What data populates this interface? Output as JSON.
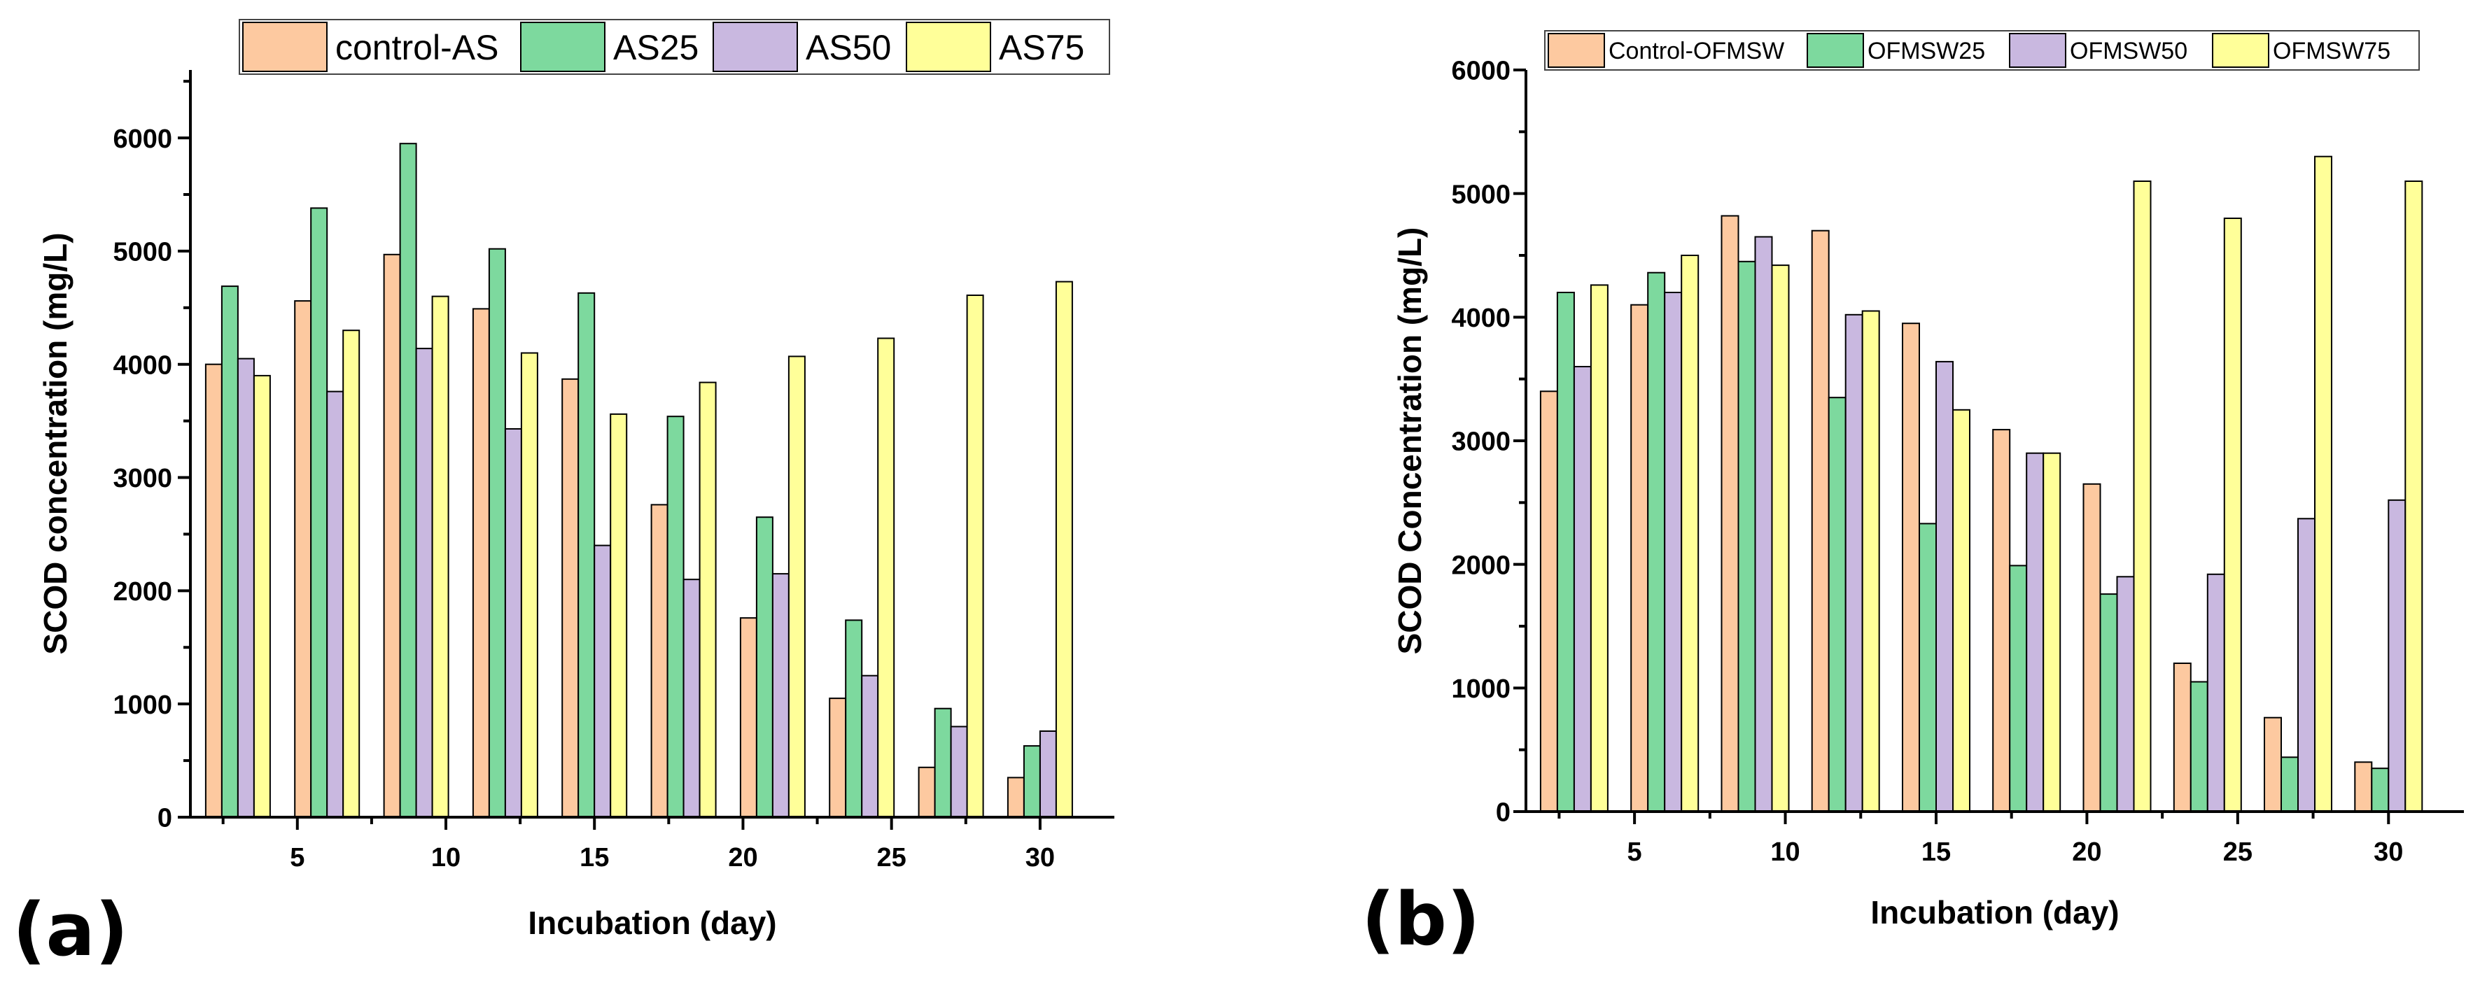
{
  "chart_data": [
    {
      "type": "bar",
      "panel_label": "(a)",
      "xlabel": "Incubation (day)",
      "ylabel": "SCOD concentration (mg/L)",
      "ylim": [
        0,
        6600
      ],
      "yticks": [
        0,
        1000,
        2000,
        3000,
        4000,
        5000,
        6000
      ],
      "xlim": [
        1.4,
        32.5
      ],
      "xticks": [
        5,
        10,
        15,
        20,
        25,
        30
      ],
      "x": [
        3,
        6,
        9,
        12,
        15,
        18,
        21,
        24,
        27,
        30
      ],
      "legend": "top",
      "grid": false,
      "series": [
        {
          "name": "control-AS",
          "color": "#FDC9A0",
          "values": [
            4000,
            4560,
            4970,
            4490,
            3870,
            2760,
            1760,
            1050,
            440,
            350
          ]
        },
        {
          "name": "AS25",
          "color": "#7DD99E",
          "values": [
            4690,
            5380,
            5950,
            5020,
            4630,
            3540,
            2650,
            1740,
            960,
            630
          ]
        },
        {
          "name": "AS50",
          "color": "#C9B8E0",
          "values": [
            4050,
            3760,
            4140,
            3430,
            2400,
            2100,
            2150,
            1250,
            800,
            760
          ]
        },
        {
          "name": "AS75",
          "color": "#FFFF99",
          "values": [
            3900,
            4300,
            4600,
            4100,
            3560,
            3840,
            4070,
            4230,
            4610,
            4730
          ]
        }
      ]
    },
    {
      "type": "bar",
      "panel_label": "(b)",
      "xlabel": "Incubation (day)",
      "ylabel": "SCOD Concentration (mg/L)",
      "ylim": [
        0,
        6000
      ],
      "yticks": [
        0,
        1000,
        2000,
        3000,
        4000,
        5000,
        6000
      ],
      "xlim": [
        1.4,
        32.5
      ],
      "xticks": [
        5,
        10,
        15,
        20,
        25,
        30
      ],
      "x": [
        3,
        6,
        9,
        12,
        15,
        18,
        21,
        24,
        27,
        30
      ],
      "legend": "top",
      "grid": false,
      "series": [
        {
          "name": "Control-OFMSW",
          "color": "#FDC9A0",
          "values": [
            3400,
            4100,
            4820,
            4700,
            3950,
            3090,
            2650,
            1200,
            760,
            400
          ]
        },
        {
          "name": "OFMSW25",
          "color": "#7DD99E",
          "values": [
            4200,
            4360,
            4450,
            3350,
            2330,
            1990,
            1760,
            1050,
            440,
            350
          ]
        },
        {
          "name": "OFMSW50",
          "color": "#C9B8E0",
          "values": [
            3600,
            4200,
            4650,
            4020,
            3640,
            2900,
            1900,
            1920,
            2370,
            2520
          ]
        },
        {
          "name": "OFMSW75",
          "color": "#FFFF99",
          "values": [
            4260,
            4500,
            4420,
            4050,
            3250,
            2900,
            5100,
            4800,
            5300,
            5100
          ]
        }
      ]
    }
  ]
}
